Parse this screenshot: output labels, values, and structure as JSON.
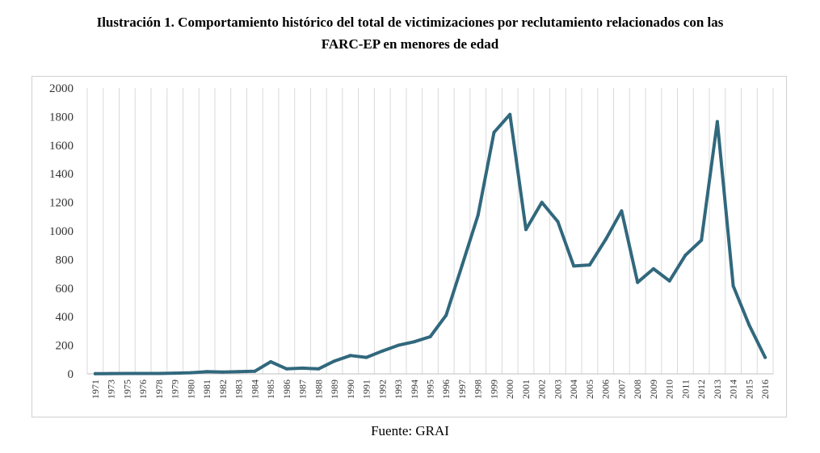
{
  "chart_data": {
    "type": "line",
    "title_line1": "Ilustración 1. Comportamiento histórico del total de victimizaciones por reclutamiento relacionados con las",
    "title_line2": "FARC-EP en menores de edad",
    "source": "Fuente: GRAI",
    "xlabel": "",
    "ylabel": "",
    "ylim": [
      0,
      2000
    ],
    "yticks": [
      0,
      200,
      400,
      600,
      800,
      1000,
      1200,
      1400,
      1600,
      1800,
      2000
    ],
    "grid": "vertical",
    "line_color": "#31687d",
    "grid_color": "#d9d9d9",
    "categories": [
      "1971",
      "1973",
      "1975",
      "1976",
      "1978",
      "1979",
      "1980",
      "1981",
      "1982",
      "1983",
      "1984",
      "1985",
      "1986",
      "1987",
      "1988",
      "1989",
      "1990",
      "1991",
      "1992",
      "1993",
      "1994",
      "1995",
      "1996",
      "1997",
      "1998",
      "1999",
      "2000",
      "2001",
      "2002",
      "2003",
      "2004",
      "2005",
      "2006",
      "2007",
      "2008",
      "2009",
      "2010",
      "2011",
      "2012",
      "2013",
      "2014",
      "2015",
      "2016"
    ],
    "series": [
      {
        "name": "Victimizaciones",
        "values": [
          1,
          2,
          3,
          3,
          3,
          5,
          8,
          15,
          13,
          16,
          18,
          85,
          35,
          40,
          35,
          90,
          128,
          115,
          160,
          200,
          225,
          260,
          410,
          760,
          1110,
          1690,
          1815,
          1010,
          1200,
          1065,
          755,
          762,
          940,
          1140,
          640,
          735,
          650,
          830,
          935,
          1765,
          615,
          340,
          115
        ]
      }
    ]
  }
}
